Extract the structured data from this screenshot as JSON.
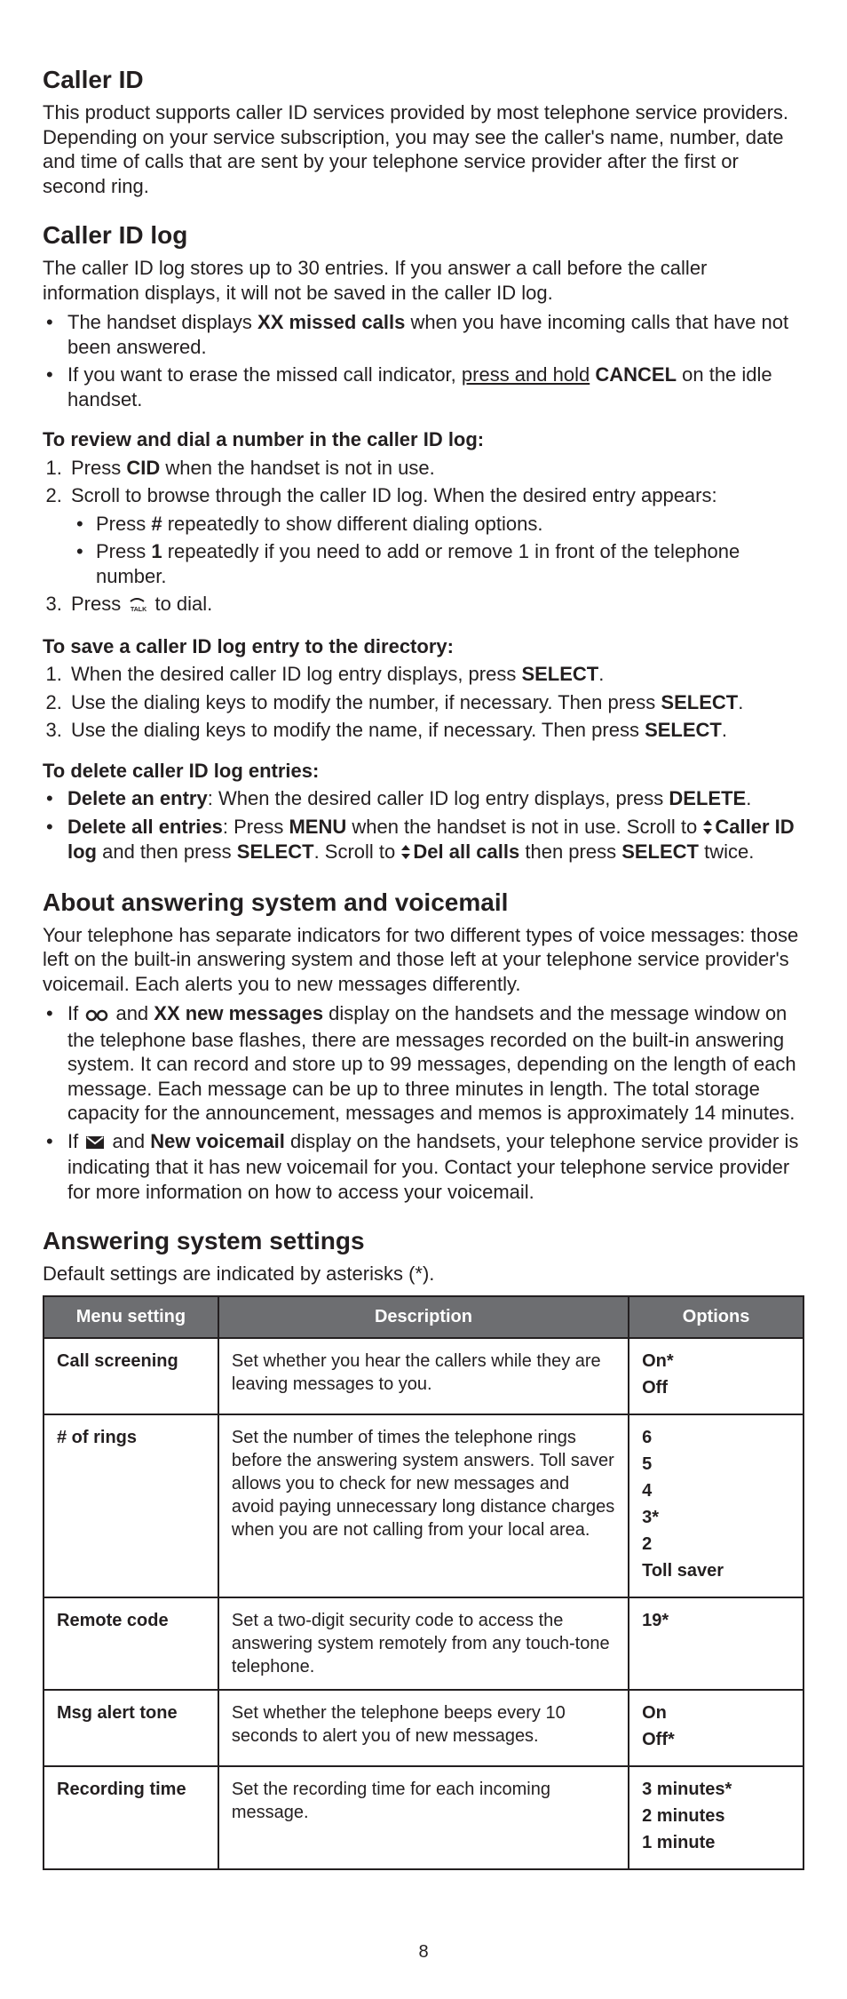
{
  "sections": {
    "callerId": {
      "heading": "Caller ID",
      "body": "This product supports caller ID services provided by most telephone service providers. Depending on your service subscription, you may see the caller's name, number, date and time of calls that are sent by your telephone service provider after the first or second ring."
    },
    "callerIdLog": {
      "heading": "Caller ID log",
      "intro": "The caller ID log stores up to 30 entries. If you answer a call before the caller information displays, it will not be saved in the caller ID log.",
      "bullets": [
        {
          "pre": "The handset displays ",
          "bold": "XX missed calls",
          "post": " when you have incoming calls that have not been answered."
        },
        {
          "pre": "If you want to erase the missed call indicator, ",
          "underline": "press and hold",
          "post_pre": " ",
          "bold": "CANCEL",
          "post": " on the idle handset."
        }
      ],
      "reviewHeading": "To review and dial a number in the caller ID log:",
      "reviewSteps": {
        "s1_pre": "Press ",
        "s1_bold": "CID",
        "s1_post": " when the handset is not in use.",
        "s2": "Scroll to browse through the caller ID log. When the desired entry appears:",
        "s2a_pre": "Press ",
        "s2a_bold": "#",
        "s2a_post": " repeatedly to show different dialing options.",
        "s2b_pre": "Press ",
        "s2b_bold": "1",
        "s2b_post": " repeatedly if you need to add or remove 1 in front of the telephone number.",
        "s3_pre": "Press ",
        "s3_post": " to dial."
      },
      "saveHeading": "To save a caller ID log entry to the directory:",
      "saveSteps": {
        "s1_pre": "When the desired caller ID log entry displays, press ",
        "s1_bold": "SELECT",
        "s1_post": ".",
        "s2_pre": "Use the dialing keys to modify the number, if necessary. Then press ",
        "s2_bold": "SELECT",
        "s2_post": ".",
        "s3_pre": "Use the dialing keys to modify the name, if necessary. Then press ",
        "s3_bold": "SELECT",
        "s3_post": "."
      },
      "deleteHeading": "To delete caller ID log entries:",
      "deleteBullets": {
        "b1_bold": "Delete an entry",
        "b1_mid": ": When the desired caller ID log entry displays, press ",
        "b1_bold2": "DELETE",
        "b1_post": ".",
        "b2_bold": "Delete all entries",
        "b2_mid": ": Press ",
        "b2_bold2": "MENU",
        "b2_mid2": " when the handset is not in use. Scroll to ",
        "b2_bold3": "Caller ID log",
        "b2_mid3": " and then press ",
        "b2_bold4": "SELECT",
        "b2_mid4": ". Scroll to ",
        "b2_bold5": "Del all calls",
        "b2_mid5": " then press ",
        "b2_bold6": "SELECT",
        "b2_post": " twice."
      }
    },
    "aboutAnswering": {
      "heading": "About answering system and voicemail",
      "intro": "Your telephone has separate indicators for two different types of voice messages: those left on the built-in answering system and those left at your telephone service provider's voicemail. Each alerts you to new messages differently.",
      "bullets": {
        "b1_pre": "If ",
        "b1_mid": " and ",
        "b1_bold": "XX new messages",
        "b1_post": " display on the handsets and the message window on the telephone base flashes, there are messages recorded on the built-in answering system. It can record and store up to 99 messages, depending on the length of each message. Each message can be up to three minutes in length. The total storage capacity for the announcement, messages and memos is approximately 14 minutes.",
        "b2_pre": "If ",
        "b2_mid": " and ",
        "b2_bold": "New voicemail",
        "b2_post": " display on the handsets, your telephone service provider is indicating that it has new voicemail for you. Contact your telephone service provider for more information on how to access your voicemail."
      }
    },
    "answeringSettings": {
      "heading": "Answering system settings",
      "intro": "Default settings are indicated by asterisks (*).",
      "table": {
        "headers": {
          "c1": "Menu setting",
          "c2": "Description",
          "c3": "Options"
        },
        "rows": [
          {
            "setting": "Call screening",
            "desc": "Set whether you hear the callers while they are leaving messages to you.",
            "options": [
              "On*",
              "Off"
            ]
          },
          {
            "setting": "# of rings",
            "desc": "Set the number of times the telephone rings before the answering system answers. Toll saver allows you to check for new messages and avoid paying unnecessary long distance charges when you are not calling from your local area.",
            "options": [
              "6",
              "5",
              "4",
              "3*",
              "2",
              "Toll saver"
            ]
          },
          {
            "setting": "Remote code",
            "desc": "Set a two-digit security code to access the answering system remotely from any touch-tone telephone.",
            "options": [
              "19*"
            ]
          },
          {
            "setting": "Msg alert tone",
            "desc": "Set whether the telephone beeps every 10 seconds to alert you of new messages.",
            "options": [
              "On",
              "Off*"
            ]
          },
          {
            "setting": "Recording time",
            "desc": "Set the recording time for each incoming message.",
            "options": [
              "3 minutes*",
              "2 minutes",
              "1 minute"
            ]
          }
        ]
      }
    }
  },
  "pageNumber": "8"
}
